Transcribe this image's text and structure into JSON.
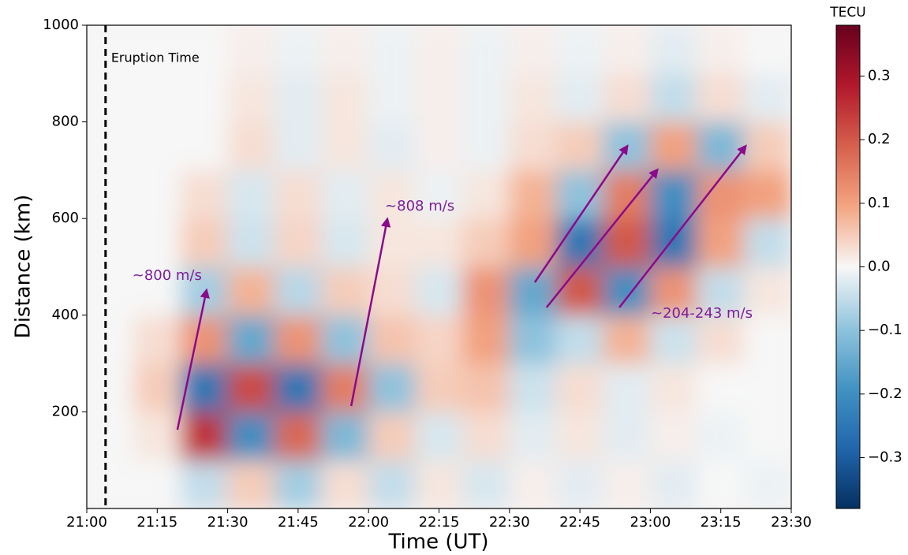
{
  "chart_data": {
    "type": "heatmap",
    "colormap": "RdBu_r",
    "xlabel": "Time (UT)",
    "ylabel": "Distance (km)",
    "colorbar_label": "TECU",
    "xlim": [
      0,
      150
    ],
    "ylim": [
      0,
      1000
    ],
    "xticks": [
      {
        "value": 0,
        "label": "21:00"
      },
      {
        "value": 15,
        "label": "21:15"
      },
      {
        "value": 30,
        "label": "21:30"
      },
      {
        "value": 45,
        "label": "21:45"
      },
      {
        "value": 60,
        "label": "22:00"
      },
      {
        "value": 75,
        "label": "22:15"
      },
      {
        "value": 90,
        "label": "22:30"
      },
      {
        "value": 105,
        "label": "22:45"
      },
      {
        "value": 120,
        "label": "23:00"
      },
      {
        "value": 135,
        "label": "23:15"
      },
      {
        "value": 150,
        "label": "23:30"
      }
    ],
    "yticks": [
      200,
      400,
      600,
      800,
      1000
    ],
    "clim": [
      -0.38,
      0.38
    ],
    "cticks": [
      {
        "value": -0.3,
        "label": "−0.3"
      },
      {
        "value": -0.2,
        "label": "−0.2"
      },
      {
        "value": -0.1,
        "label": "−0.1"
      },
      {
        "value": 0,
        "label": "0.0"
      },
      0.1,
      0.2,
      0.3
    ],
    "xbins": [
      0,
      10,
      20,
      30,
      40,
      50,
      60,
      70,
      80,
      90,
      100,
      110,
      120,
      130,
      140,
      150
    ],
    "ybins": [
      0,
      100,
      200,
      300,
      400,
      500,
      600,
      700,
      800,
      900,
      1000
    ],
    "z": [
      [
        0,
        0,
        -0.05,
        0.05,
        -0.08,
        0.03,
        -0.05,
        0.02,
        -0.03,
        0.01,
        -0.02,
        0.01,
        -0.02,
        0,
        -0.01
      ],
      [
        0,
        0.02,
        0.25,
        -0.2,
        0.18,
        -0.12,
        0.05,
        -0.03,
        0.03,
        -0.02,
        0.02,
        -0.02,
        0.01,
        -0.01,
        0
      ],
      [
        0,
        0.05,
        -0.25,
        0.22,
        -0.25,
        0.15,
        -0.1,
        0.05,
        0.06,
        -0.04,
        0.03,
        -0.02,
        0.02,
        0,
        0
      ],
      [
        0,
        0.03,
        0.12,
        -0.15,
        0.12,
        -0.1,
        0.06,
        0.04,
        0.1,
        -0.1,
        -0.05,
        0.08,
        -0.04,
        0.03,
        0
      ],
      [
        0,
        0,
        -0.08,
        0.08,
        -0.06,
        0.05,
        0.03,
        -0.03,
        0.12,
        -0.15,
        0.2,
        -0.2,
        0.12,
        -0.05,
        0.02
      ],
      [
        0,
        0,
        0.05,
        -0.04,
        0.04,
        -0.03,
        0.02,
        0.02,
        0.05,
        0.1,
        -0.25,
        0.2,
        -0.25,
        0.1,
        -0.05
      ],
      [
        0,
        0,
        0.03,
        -0.03,
        0.03,
        -0.02,
        0.02,
        -0.01,
        0.02,
        0.08,
        -0.1,
        0.15,
        -0.2,
        0.12,
        0.1
      ],
      [
        0,
        0,
        0,
        0.03,
        -0.02,
        0.02,
        -0.02,
        0.01,
        -0.01,
        0.03,
        0.05,
        -0.1,
        0.1,
        -0.12,
        0.05
      ],
      [
        0,
        0,
        0,
        0.02,
        -0.02,
        0.02,
        -0.01,
        0.01,
        -0.01,
        0.02,
        -0.02,
        0.03,
        -0.05,
        0.03,
        -0.02
      ],
      [
        0,
        0,
        0,
        0.01,
        -0.01,
        0.01,
        -0.01,
        0.01,
        -0.01,
        0.01,
        -0.01,
        0.01,
        -0.02,
        0.01,
        0
      ]
    ],
    "eruption": {
      "x": 4,
      "label": "Eruption Time"
    },
    "arrows": [
      {
        "from": [
          19.3,
          163
        ],
        "to": [
          25.5,
          452
        ],
        "label": "~800 m/s",
        "label_at": [
          9.7,
          481
        ]
      },
      {
        "from": [
          56.3,
          212
        ],
        "to": [
          64.0,
          599
        ],
        "label": "~808 m/s",
        "label_at": [
          63.5,
          625
        ]
      },
      {
        "from": [
          95.4,
          468
        ],
        "to": [
          115.1,
          750
        ]
      },
      {
        "from": [
          97.9,
          416
        ],
        "to": [
          121.5,
          701
        ]
      },
      {
        "from": [
          113.4,
          416
        ],
        "to": [
          140.3,
          750
        ],
        "label": "~204-243 m/s",
        "label_at": [
          120.1,
          403
        ]
      }
    ]
  }
}
